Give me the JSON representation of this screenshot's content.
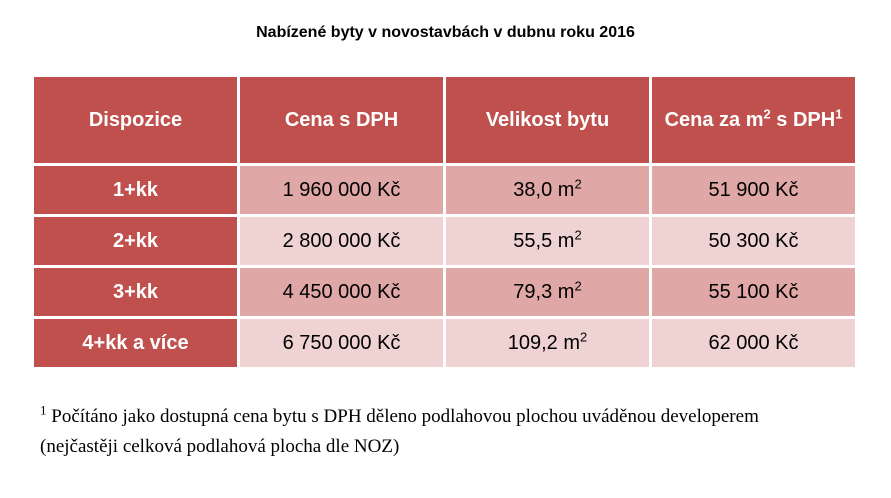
{
  "header": {
    "title": "Nabízené byty v novostavbách v dubnu roku 2016"
  },
  "table": {
    "columns": [
      "Dispozice",
      "Cena s DPH",
      "Velikost bytu",
      [
        {
          "text": "Cena za m"
        },
        {
          "text": "2",
          "sup": true
        },
        {
          "text": " s DPH"
        },
        {
          "text": "1",
          "sup": true
        }
      ]
    ],
    "rows": [
      [
        "1+kk",
        "1 960 000 Kč",
        [
          {
            "text": "38,0 m"
          },
          {
            "text": "2",
            "sup": true
          }
        ],
        "51 900 Kč"
      ],
      [
        "2+kk",
        "2 800 000 Kč",
        [
          {
            "text": "55,5 m"
          },
          {
            "text": "2",
            "sup": true
          }
        ],
        "50 300 Kč"
      ],
      [
        "3+kk",
        "4 450 000 Kč",
        [
          {
            "text": "79,3 m"
          },
          {
            "text": "2",
            "sup": true
          }
        ],
        "55 100 Kč"
      ],
      [
        "4+kk a více",
        "6 750 000 Kč",
        [
          {
            "text": "109,2 m"
          },
          {
            "text": "2",
            "sup": true
          }
        ],
        "62 000 Kč"
      ]
    ]
  },
  "footnote": {
    "mark": "1",
    "text": "Počítáno jako dostupná cena bytu s DPH děleno podlahovou plochou uváděnou developerem (nejčastěji celková podlahová plocha dle NOZ)"
  }
}
